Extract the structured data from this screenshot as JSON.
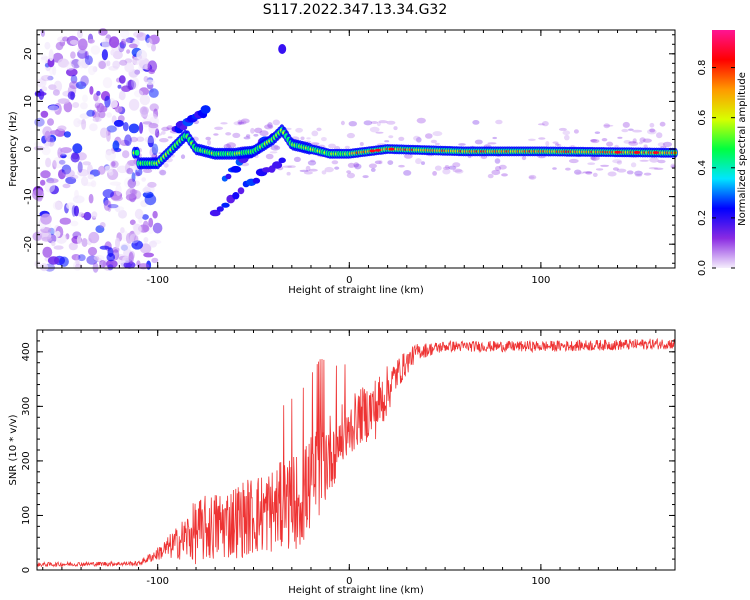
{
  "title": "S117.2022.347.13.34.G32",
  "chart_data": [
    {
      "type": "heatmap",
      "xlabel": "Height of straight line (km)",
      "ylabel": "Frequency (Hz)",
      "xlim": [
        -163,
        170
      ],
      "ylim": [
        -25,
        25
      ],
      "xticks": [
        -100,
        0,
        100
      ],
      "yticks": [
        -20,
        -10,
        0,
        10,
        20
      ],
      "colorbar": {
        "label": "Normalized spectral amplitude",
        "range": [
          0,
          0.95
        ],
        "ticks": [
          0.0,
          0.2,
          0.4,
          0.6,
          0.8
        ],
        "colors": [
          "#f5eefc",
          "#8a2be2",
          "#0000ff",
          "#00e5ff",
          "#00ff40",
          "#d8ff00",
          "#ff9900",
          "#ff0000",
          "#ff1493"
        ]
      },
      "ridge": {
        "description_free_noise_region_end_km": -110,
        "points": [
          {
            "x": -110,
            "f": -3
          },
          {
            "x": -100,
            "f": -3
          },
          {
            "x": -90,
            "f": 1
          },
          {
            "x": -85,
            "f": 3
          },
          {
            "x": -80,
            "f": 0
          },
          {
            "x": -70,
            "f": -1
          },
          {
            "x": -60,
            "f": -1
          },
          {
            "x": -50,
            "f": -0.5
          },
          {
            "x": -40,
            "f": 2
          },
          {
            "x": -35,
            "f": 4
          },
          {
            "x": -30,
            "f": 1
          },
          {
            "x": -20,
            "f": 0
          },
          {
            "x": -10,
            "f": -1
          },
          {
            "x": 0,
            "f": -1
          },
          {
            "x": 20,
            "f": 0
          },
          {
            "x": 60,
            "f": -0.5
          },
          {
            "x": 100,
            "f": -0.5
          },
          {
            "x": 170,
            "f": -0.8
          }
        ]
      }
    },
    {
      "type": "line",
      "xlabel": "Height of straight line (km)",
      "ylabel": "SNR (10 * v/v)",
      "xlim": [
        -163,
        170
      ],
      "ylim": [
        0,
        440
      ],
      "xticks": [
        -100,
        0,
        100
      ],
      "yticks": [
        0,
        100,
        200,
        300,
        400
      ],
      "color": "#ee3333",
      "envelope": [
        {
          "x": -163,
          "mean": 10,
          "noise": 4
        },
        {
          "x": -110,
          "mean": 12,
          "noise": 4
        },
        {
          "x": -100,
          "mean": 30,
          "noise": 12
        },
        {
          "x": -90,
          "mean": 50,
          "noise": 30
        },
        {
          "x": -80,
          "mean": 70,
          "noise": 60
        },
        {
          "x": -60,
          "mean": 90,
          "noise": 70
        },
        {
          "x": -40,
          "mean": 110,
          "noise": 80
        },
        {
          "x": -25,
          "mean": 130,
          "noise": 90
        },
        {
          "x": -15,
          "mean": 190,
          "noise": 90
        },
        {
          "x": -5,
          "mean": 240,
          "noise": 60
        },
        {
          "x": 5,
          "mean": 280,
          "noise": 50
        },
        {
          "x": 15,
          "mean": 300,
          "noise": 60
        },
        {
          "x": 25,
          "mean": 360,
          "noise": 30
        },
        {
          "x": 35,
          "mean": 400,
          "noise": 15
        },
        {
          "x": 50,
          "mean": 410,
          "noise": 10
        },
        {
          "x": 100,
          "mean": 410,
          "noise": 10
        },
        {
          "x": 170,
          "mean": 415,
          "noise": 10
        }
      ]
    }
  ]
}
